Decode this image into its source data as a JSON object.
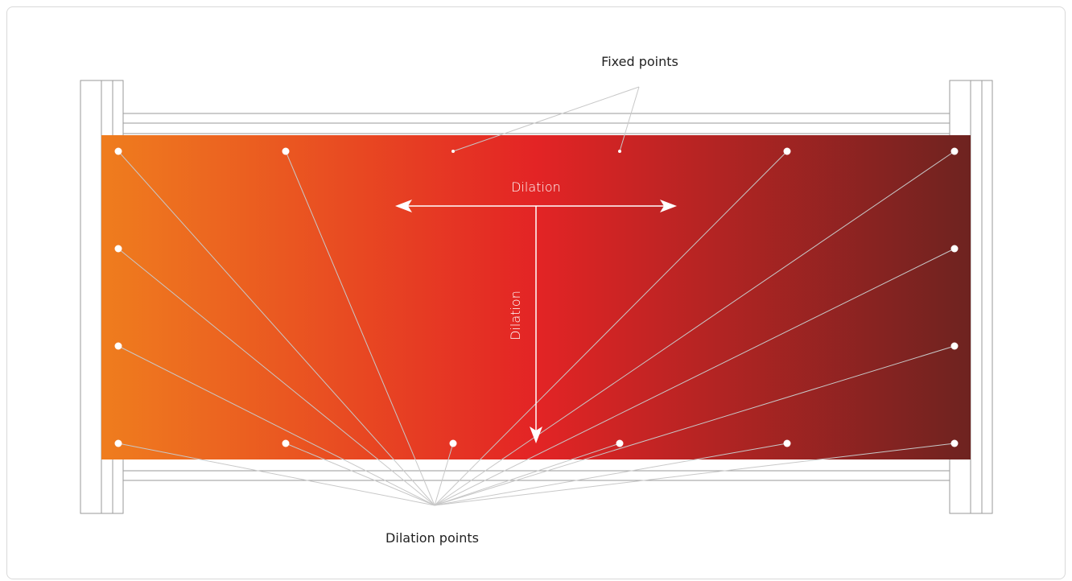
{
  "labels": {
    "fixed_points": "Fixed points",
    "dilation_horizontal": "Dilation",
    "dilation_vertical": "Dilation",
    "dilation_points": "Dilation points"
  },
  "colors": {
    "gradient_left": "#ef7d1e",
    "gradient_mid": "#e32425",
    "gradient_right": "#6e2320",
    "frame_stroke": "#9a9a9a",
    "leader_line": "#c8c8c8",
    "point_fill": "#ffffff"
  }
}
